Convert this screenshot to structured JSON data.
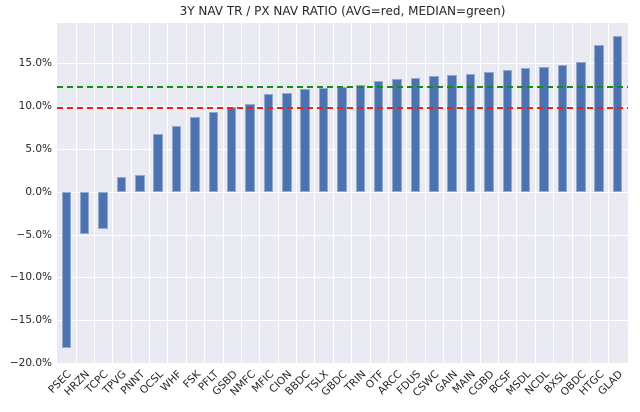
{
  "figure": {
    "title": "3Y NAV TR / PX NAV RATIO (AVG=red, MEDIAN=green)"
  },
  "chart_data": {
    "type": "bar",
    "title": "3Y NAV TR / PX NAV RATIO (AVG=red, MEDIAN=green)",
    "categories": [
      "PSEC",
      "HRZN",
      "TCPC",
      "TPVG",
      "PNNT",
      "OCSL",
      "WHF",
      "FSK",
      "PFLT",
      "GSBD",
      "NMFC",
      "MFIC",
      "CION",
      "BBDC",
      "TSLX",
      "GBDC",
      "TRIN",
      "OTF",
      "ARCC",
      "FDUS",
      "CSWC",
      "GAIN",
      "MAIN",
      "CGBD",
      "BCSF",
      "MSDL",
      "NCDL",
      "BXSL",
      "OBDC",
      "HTGC",
      "GLAD"
    ],
    "values": [
      -18.3,
      -4.9,
      -4.4,
      1.7,
      2.0,
      6.8,
      7.7,
      8.7,
      9.3,
      9.9,
      10.3,
      11.4,
      11.5,
      12.0,
      12.1,
      12.2,
      12.5,
      12.9,
      13.2,
      13.3,
      13.5,
      13.6,
      13.7,
      14.0,
      14.2,
      14.4,
      14.6,
      14.8,
      15.2,
      17.1,
      18.2
    ],
    "unit": "%",
    "avg_line": {
      "label": "AVG",
      "value": 9.8,
      "color": "#ee2114",
      "style": "dashed"
    },
    "median_line": {
      "label": "MEDIAN",
      "value": 12.2,
      "color": "#0f8f0f",
      "style": "dashed"
    },
    "bar_color": "#4c72b0",
    "plot_bg_color": "#eaeaf2",
    "grid_color": "#ffffff",
    "text_color": "#262626",
    "ylim": [
      -20,
      19.7
    ],
    "grid": true,
    "legend_position": "none",
    "yticks": [
      {
        "value": 15,
        "label": "15.0%"
      },
      {
        "value": 10,
        "label": "10.0%"
      },
      {
        "value": 5,
        "label": "5.0%"
      },
      {
        "value": 0,
        "label": "0.0%"
      },
      {
        "value": -5,
        "label": "−5.0%"
      },
      {
        "value": -10,
        "label": "−10.0%"
      },
      {
        "value": -15,
        "label": "−15.0%"
      },
      {
        "value": -20,
        "label": "−20.0%"
      }
    ]
  }
}
